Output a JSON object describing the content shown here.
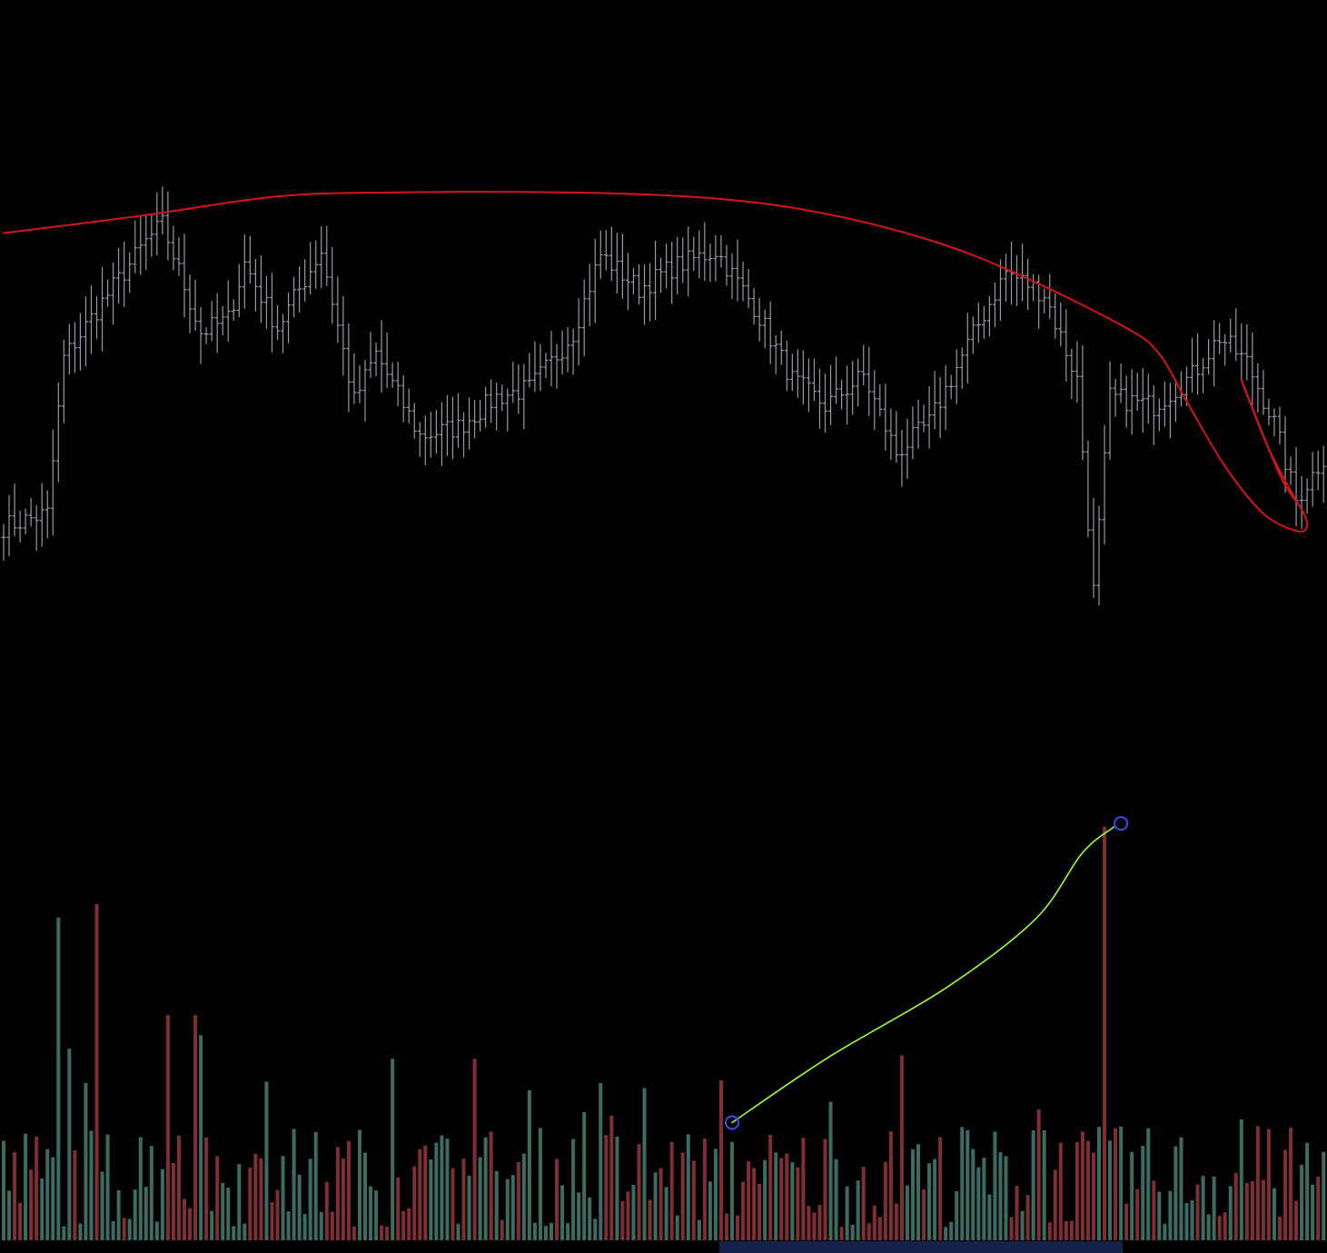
{
  "colors": {
    "background": "#000000",
    "price_bar": "#9a9aa0",
    "volume_up": "#3d6b60",
    "volume_down": "#7e2f33",
    "trend_curve": "#d4141d",
    "annotation_curve": "#9aff33",
    "anchor_handle": "#3c4fe0",
    "time_range_highlight": "#16214a"
  },
  "chart_data": [
    {
      "type": "ohlc",
      "pane": "price",
      "axes_visible": false,
      "grid": false,
      "legend": "none",
      "ylim": [
        0,
        100
      ],
      "n_bars": 242,
      "waypoints": [
        [
          0,
          18
        ],
        [
          8,
          21
        ],
        [
          11,
          57
        ],
        [
          18,
          70
        ],
        [
          26,
          84
        ],
        [
          29,
          88
        ],
        [
          36,
          63
        ],
        [
          41,
          66
        ],
        [
          44,
          79
        ],
        [
          50,
          64
        ],
        [
          58,
          82
        ],
        [
          64,
          47
        ],
        [
          68,
          58
        ],
        [
          76,
          39
        ],
        [
          83,
          41
        ],
        [
          90,
          48
        ],
        [
          96,
          50
        ],
        [
          100,
          56
        ],
        [
          104,
          63
        ],
        [
          109,
          81
        ],
        [
          116,
          73
        ],
        [
          122,
          78
        ],
        [
          130,
          82
        ],
        [
          137,
          69
        ],
        [
          144,
          52
        ],
        [
          150,
          46
        ],
        [
          157,
          53
        ],
        [
          163,
          35
        ],
        [
          169,
          42
        ],
        [
          176,
          60
        ],
        [
          183,
          77
        ],
        [
          190,
          72
        ],
        [
          196,
          52
        ],
        [
          199,
          3
        ],
        [
          202,
          48
        ],
        [
          210,
          46
        ],
        [
          217,
          53
        ],
        [
          222,
          62
        ],
        [
          227,
          56
        ],
        [
          232,
          42
        ],
        [
          236,
          24
        ],
        [
          241,
          34
        ]
      ],
      "overlays": [
        {
          "kind": "trend_curve",
          "points": [
            [
              0,
              86
            ],
            [
              25,
              90
            ],
            [
              50,
              94.5
            ],
            [
              70,
              95.4
            ],
            [
              104,
              95.4
            ],
            [
              130,
              94
            ],
            [
              150,
              90.5
            ],
            [
              170,
              84
            ],
            [
              186,
              76
            ],
            [
              205,
              64
            ],
            [
              211,
              58
            ],
            [
              216,
              47
            ],
            [
              223,
              32
            ],
            [
              230,
              21
            ],
            [
              236,
              17
            ],
            [
              238,
              18
            ],
            [
              237,
              22
            ],
            [
              233,
              30
            ],
            [
              226,
              52
            ],
            [
              231,
              36
            ],
            [
              236,
              24
            ]
          ]
        }
      ]
    },
    {
      "type": "bar",
      "pane": "volume",
      "axes_visible": false,
      "grid": false,
      "legend": "none",
      "ylim": [
        0,
        100
      ],
      "n_bars": 242,
      "peaks": [
        {
          "index": 10,
          "value": 96,
          "direction": "up"
        },
        {
          "index": 17,
          "value": 100,
          "direction": "down"
        },
        {
          "index": 12,
          "value": 57,
          "direction": "up"
        },
        {
          "index": 30,
          "value": 67,
          "direction": "down"
        },
        {
          "index": 35,
          "value": 67,
          "direction": "down"
        },
        {
          "index": 36,
          "value": 61,
          "direction": "up"
        },
        {
          "index": 71,
          "value": 54,
          "direction": "up"
        },
        {
          "index": 86,
          "value": 54,
          "direction": "down"
        },
        {
          "index": 164,
          "value": 55,
          "direction": "down"
        },
        {
          "index": 201,
          "value": 123,
          "direction": "down"
        }
      ],
      "overlays": [
        {
          "kind": "annotation_curve",
          "start_bar": 133,
          "start_value": 35,
          "end_bar": 204,
          "end_value": 124
        }
      ],
      "time_range_highlight": {
        "from_bar": 131,
        "to_bar": 204
      }
    }
  ]
}
